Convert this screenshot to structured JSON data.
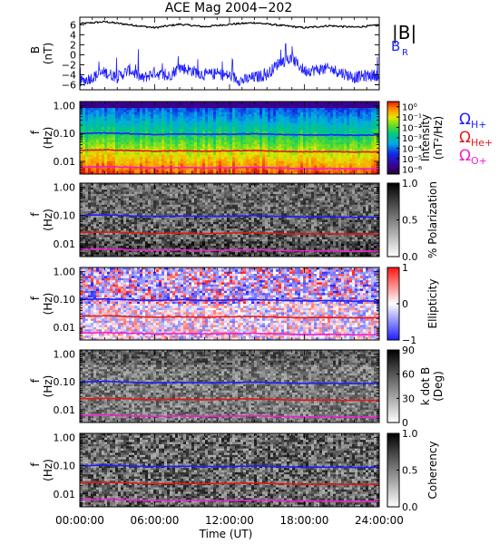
{
  "title": "ACE Mag 2004−202",
  "xaxis": {
    "ticks": [
      "00:00:00",
      "06:00:00",
      "12:00:00",
      "18:00:00",
      "24:00:00"
    ],
    "label": "Time (UT)",
    "range_hours": [
      0,
      24
    ]
  },
  "colors": {
    "btotal": "#000000",
    "br": "#1f1fff",
    "h_plus": "#1f1fff",
    "he_plus": "#e01a1a",
    "o_plus": "#ee22cc"
  },
  "chart_data": [
    {
      "id": "field",
      "type": "line",
      "ylabel": "B",
      "yunit": "(nT)",
      "ylim": [
        -7,
        7.5
      ],
      "yticks": [
        "6",
        "4",
        "2",
        "0",
        "−2",
        "−4",
        "−6"
      ],
      "yticks_values": [
        6,
        4,
        2,
        0,
        -2,
        -4,
        -6
      ],
      "legend": [
        "|B|",
        "B"
      ],
      "legend_sub": [
        "",
        "R"
      ],
      "series": [
        {
          "name": "|B|",
          "x": [
            0,
            2,
            4,
            6,
            8,
            10,
            12,
            14,
            16,
            18,
            20,
            22,
            24
          ],
          "values": [
            6.2,
            6.6,
            6.0,
            5.4,
            6.1,
            5.6,
            6.1,
            6.4,
            5.9,
            5.4,
            5.8,
            5.5,
            5.9
          ]
        },
        {
          "name": "BR",
          "x": [
            0,
            1,
            2,
            3,
            4,
            5,
            6,
            7,
            8,
            9,
            10,
            11,
            12,
            13,
            14,
            15,
            16,
            17,
            18,
            19,
            20,
            21,
            22,
            23,
            24
          ],
          "values": [
            -5.5,
            -4.5,
            -3.5,
            -4.5,
            -3.0,
            -4.8,
            -3.5,
            -4.5,
            -2.5,
            -3.2,
            -4.0,
            -3.8,
            -4.2,
            -5.2,
            -4.5,
            -4.0,
            -1.5,
            -0.8,
            -3.2,
            -3.0,
            -2.8,
            -3.6,
            -4.5,
            -4.2,
            -4.0
          ]
        }
      ]
    },
    {
      "id": "intensity",
      "type": "heatmap",
      "ylabel": "f",
      "yunit": "(Hz)",
      "yticks": [
        "1.00",
        "0.10",
        "0.01"
      ],
      "yticks_values": [
        1.0,
        0.1,
        0.01
      ],
      "ylim": [
        0.0035,
        1.4
      ],
      "colorbar": {
        "label": "Intensity",
        "unit": "(nT²/Hz)",
        "ticks": [
          "10⁰",
          "10⁻¹",
          "10⁻²",
          "10⁻³",
          "10⁻⁴",
          "10⁻⁵",
          "10⁻⁶"
        ],
        "tick_values": [
          0,
          -1,
          -2,
          -3,
          -4,
          -5,
          -6
        ],
        "range": [
          -6.5,
          0.5
        ]
      },
      "legend": [
        "Ω",
        "Ω",
        "Ω"
      ],
      "legend_sub": [
        "H+",
        "He+",
        "O+"
      ]
    },
    {
      "id": "polarization",
      "type": "heatmap",
      "ylabel": "f",
      "yunit": "(Hz)",
      "yticks": [
        "1.00",
        "0.10",
        "0.01"
      ],
      "yticks_values": [
        1.0,
        0.1,
        0.01
      ],
      "ylim": [
        0.0035,
        1.4
      ],
      "colorbar": {
        "label": "% Polarization",
        "unit": "",
        "ticks": [
          "1.0",
          "0.5",
          "0.0"
        ],
        "tick_values": [
          1.0,
          0.5,
          0.0
        ],
        "range": [
          0,
          1
        ]
      }
    },
    {
      "id": "ellipticity",
      "type": "heatmap",
      "ylabel": "f",
      "yunit": "(Hz)",
      "yticks": [
        "1.00",
        "0.10",
        "0.01"
      ],
      "yticks_values": [
        1.0,
        0.1,
        0.01
      ],
      "ylim": [
        0.0035,
        1.4
      ],
      "colorbar": {
        "label": "Ellipticity",
        "unit": "",
        "ticks": [
          "1",
          "0",
          "−1"
        ],
        "tick_values": [
          1,
          0,
          -1
        ],
        "range": [
          -1,
          1
        ]
      }
    },
    {
      "id": "kdotb",
      "type": "heatmap",
      "ylabel": "f",
      "yunit": "(Hz)",
      "yticks": [
        "1.00",
        "0.10",
        "0.01"
      ],
      "yticks_values": [
        1.0,
        0.1,
        0.01
      ],
      "ylim": [
        0.0035,
        1.4
      ],
      "colorbar": {
        "label": "k dot B",
        "unit": "(Deg)",
        "ticks": [
          "90",
          "60",
          "30",
          "0"
        ],
        "tick_values": [
          90,
          60,
          30,
          0
        ],
        "range": [
          0,
          90
        ]
      }
    },
    {
      "id": "coherency",
      "type": "heatmap",
      "ylabel": "f",
      "yunit": "(Hz)",
      "yticks": [
        "1.00",
        "0.10",
        "0.01"
      ],
      "yticks_values": [
        1.0,
        0.1,
        0.01
      ],
      "ylim": [
        0.0035,
        1.4
      ],
      "colorbar": {
        "label": "Coherency",
        "unit": "",
        "ticks": [
          "1.0",
          "0.5",
          "0.0"
        ],
        "tick_values": [
          1.0,
          0.5,
          0.0
        ],
        "range": [
          0,
          1
        ]
      }
    }
  ],
  "gyrofrequency": {
    "x": [
      0,
      2,
      4,
      6,
      8,
      10,
      12,
      14,
      16,
      18,
      20,
      22,
      24
    ],
    "h_plus": [
      0.1,
      0.105,
      0.098,
      0.092,
      0.097,
      0.093,
      0.095,
      0.098,
      0.093,
      0.088,
      0.09,
      0.087,
      0.088
    ],
    "he_plus": [
      0.025,
      0.026,
      0.0245,
      0.023,
      0.024,
      0.023,
      0.0238,
      0.0245,
      0.023,
      0.022,
      0.0225,
      0.0218,
      0.022
    ],
    "o_plus": [
      0.0062,
      0.0065,
      0.0061,
      0.0058,
      0.006,
      0.0058,
      0.0059,
      0.0061,
      0.0058,
      0.0055,
      0.0056,
      0.0054,
      0.0055
    ]
  }
}
